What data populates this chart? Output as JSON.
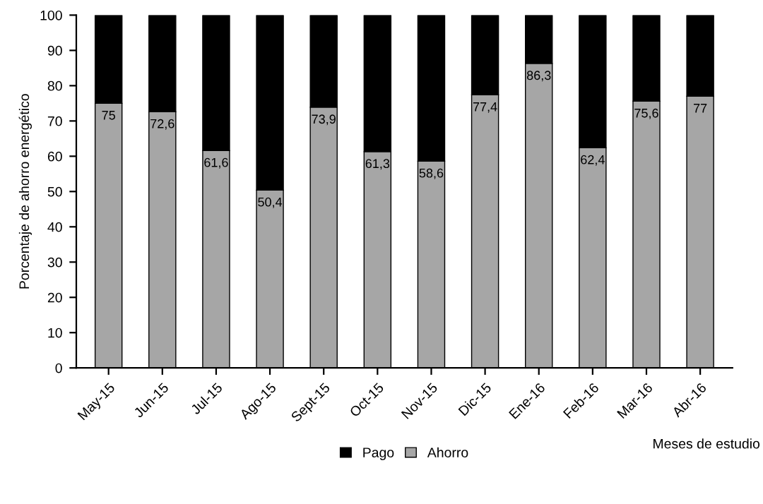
{
  "chart_data": {
    "type": "bar",
    "stacked": true,
    "ylabel": "Porcentaje de ahorro energético",
    "xlabel": "Meses de estudio",
    "categories": [
      "May-15",
      "Jun-15",
      "Jul-15",
      "Ago-15",
      "Sept-15",
      "Oct-15",
      "Nov-15",
      "Dic-15",
      "Ene-16",
      "Feb-16",
      "Mar-16",
      "Abr-16"
    ],
    "series": [
      {
        "name": "Ahorro",
        "color": "#a6a6a6",
        "values": [
          75,
          72.6,
          61.6,
          50.4,
          73.9,
          61.3,
          58.6,
          77.4,
          86.3,
          62.4,
          75.6,
          77
        ],
        "value_labels": [
          "75",
          "72,6",
          "61,6",
          "50,4",
          "73,9",
          "61,3",
          "58,6",
          "77,4",
          "86,3",
          "62,4",
          "75,6",
          "77"
        ]
      },
      {
        "name": "Pago",
        "color": "#000000",
        "values": [
          25,
          27.4,
          38.4,
          49.6,
          26.1,
          38.7,
          41.4,
          22.6,
          13.7,
          37.6,
          24.4,
          23
        ]
      }
    ],
    "ylim": [
      0,
      100
    ],
    "yticks": [
      0,
      10,
      20,
      30,
      40,
      50,
      60,
      70,
      80,
      90,
      100
    ],
    "grid": false,
    "legend": "bottom"
  }
}
